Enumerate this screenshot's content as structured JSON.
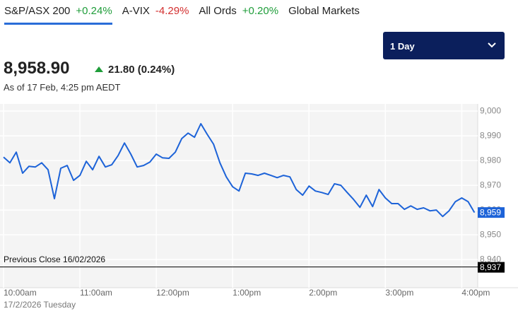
{
  "tabs": [
    {
      "name": "S&P/ASX 200",
      "change": "+0.24%"
    },
    {
      "name": "A-VIX",
      "change": "-4.29%"
    },
    {
      "name": "All Ords",
      "change": "+0.20%"
    },
    {
      "name": "Global Markets"
    }
  ],
  "period_select": "1 Day",
  "quote": {
    "price": "8,958.90",
    "change": "21.80 (0.24%)",
    "as_of": "As of 17 Feb, 4:25 pm AEDT"
  },
  "chart_data": {
    "type": "line",
    "color": "#1d63d8",
    "grid": true,
    "x": [
      "10:00",
      "10:05",
      "10:10",
      "10:15",
      "10:20",
      "10:25",
      "10:30",
      "10:35",
      "10:40",
      "10:45",
      "10:50",
      "10:55",
      "11:00",
      "11:05",
      "11:10",
      "11:15",
      "11:20",
      "11:25",
      "11:30",
      "11:35",
      "11:40",
      "11:45",
      "11:50",
      "11:55",
      "12:00",
      "12:05",
      "12:10",
      "12:15",
      "12:20",
      "12:25",
      "12:30",
      "12:35",
      "12:40",
      "12:45",
      "12:50",
      "12:55",
      "13:00",
      "13:05",
      "13:10",
      "13:15",
      "13:20",
      "13:25",
      "13:30",
      "13:35",
      "13:40",
      "13:45",
      "13:50",
      "13:55",
      "14:00",
      "14:05",
      "14:10",
      "14:15",
      "14:20",
      "14:25",
      "14:30",
      "14:35",
      "14:40",
      "14:45",
      "14:50",
      "14:55",
      "15:00",
      "15:05",
      "15:10",
      "15:15",
      "15:20",
      "15:25",
      "15:30",
      "15:35",
      "15:40",
      "15:45",
      "15:50",
      "15:55",
      "16:00",
      "16:05",
      "16:10"
    ],
    "values": [
      8981.4,
      8979.1,
      8983.4,
      8974.9,
      8977.7,
      8977.4,
      8979.1,
      8976.3,
      8964.6,
      8976.9,
      8978.0,
      8972.0,
      8974.0,
      8979.7,
      8976.3,
      8981.7,
      8977.4,
      8978.3,
      8982.0,
      8987.1,
      8982.6,
      8977.4,
      8978.0,
      8979.4,
      8982.6,
      8981.1,
      8980.9,
      8983.4,
      8988.9,
      8991.1,
      8989.4,
      8994.9,
      8990.6,
      8986.6,
      8979.1,
      8973.4,
      8969.4,
      8967.7,
      8974.9,
      8974.6,
      8974.0,
      8974.9,
      8974.0,
      8973.1,
      8974.0,
      8973.4,
      8968.3,
      8966.0,
      8969.7,
      8967.7,
      8967.1,
      8966.3,
      8970.6,
      8970.0,
      8967.1,
      8964.3,
      8961.1,
      8966.0,
      8961.4,
      8968.3,
      8964.9,
      8962.6,
      8962.6,
      8960.3,
      8961.7,
      8960.3,
      8960.9,
      8959.7,
      8960.0,
      8957.4,
      8959.7,
      8963.4,
      8964.9,
      8963.4,
      8959.0
    ],
    "xlim": [
      "10:00",
      "16:12"
    ],
    "xticks": [
      {
        "value": "10:00",
        "label": "10:00am"
      },
      {
        "value": "11:00",
        "label": "11:00am"
      },
      {
        "value": "12:00",
        "label": "12:00pm"
      },
      {
        "value": "13:00",
        "label": "1:00pm"
      },
      {
        "value": "14:00",
        "label": "2:00pm"
      },
      {
        "value": "15:00",
        "label": "3:00pm"
      },
      {
        "value": "16:00",
        "label": "4:00pm"
      }
    ],
    "x_sublabel": "17/2/2026 Tuesday",
    "ylim": [
      8928.6,
      9002.9
    ],
    "yticks": [
      {
        "value": 9000,
        "label": "9,000"
      },
      {
        "value": 8990,
        "label": "8,990"
      },
      {
        "value": 8980,
        "label": "8,980"
      },
      {
        "value": 8970,
        "label": "8,970"
      },
      {
        "value": 8960,
        "label": "8,960"
      },
      {
        "value": 8950,
        "label": "8,950"
      },
      {
        "value": 8940,
        "label": "8,940"
      }
    ],
    "reference_line": {
      "label": "Previous Close 16/02/2026",
      "value": 8937,
      "value_label": "8,937"
    },
    "current_marker": {
      "value": 8959,
      "label": "8,959"
    }
  }
}
